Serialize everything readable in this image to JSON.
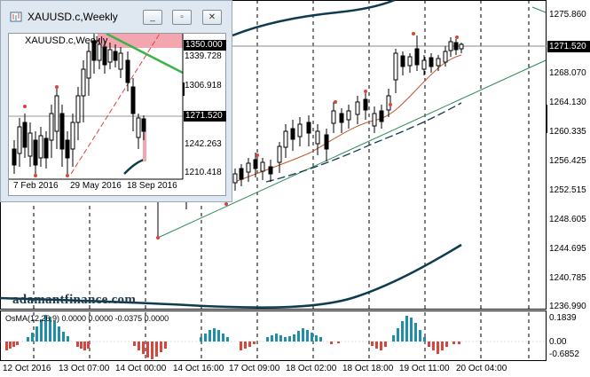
{
  "chart": {
    "price_labels": [
      "1275.860",
      "1268.070",
      "1264.130",
      "1260.335",
      "1256.425",
      "1252.515",
      "1248.605",
      "1244.695",
      "1240.785",
      "1236.990"
    ],
    "current_price": "1271.520",
    "time_labels": [
      "12 Oct 2016",
      "13 Oct 07:00",
      "14 Oct 00:00",
      "14 Oct 16:00",
      "17 Oct 09:00",
      "18 Oct 02:00",
      "18 Oct 18:00",
      "19 Oct 11:00",
      "20 Oct 04:00"
    ],
    "watermark": "adamantfinance.com"
  },
  "osma": {
    "title": "OsMA(12,26,9) 0.0000 0.0000 -0.0375 0.0000",
    "labels": [
      "0.1839",
      "0.00",
      "-0.6852"
    ]
  },
  "window": {
    "title": "XAUUSD.c,Weekly",
    "btn_min": "_",
    "btn_max": "▫",
    "btn_close": "✕",
    "inner_title": "XAUUSD.c,Weekly",
    "inner_top_price": "1350.000",
    "inner_prices": [
      "1339.728",
      "1306.918",
      "1242.263",
      "1210.418"
    ],
    "inner_current": "1271.520",
    "inner_dates": [
      "7 Feb 2016",
      "29 May 2016",
      "18 Sep 2016"
    ]
  },
  "colors": {
    "bb": "#0d3b4f",
    "ma": "#c0562a",
    "trend": "#2e8b57",
    "bull_hist": "#1f8fa8",
    "bear_hist": "#d9443c"
  }
}
